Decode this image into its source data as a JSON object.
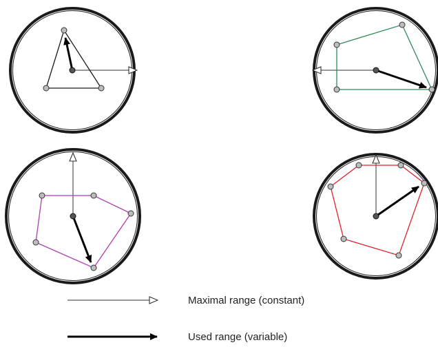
{
  "colors": {
    "outline": "#1a1a1a",
    "range_line": "#333333",
    "used_arrow": "#000000",
    "polygon_1": "#1a1a1a",
    "polygon_2": "#2e8b57",
    "polygon_3": "#b03ab0",
    "polygon_4": "#e0202a",
    "vertex_fill": "#bdbdbd"
  },
  "legend": {
    "maximal_label": "Maximal range (constant)",
    "used_label": "Used range (variable)"
  }
}
